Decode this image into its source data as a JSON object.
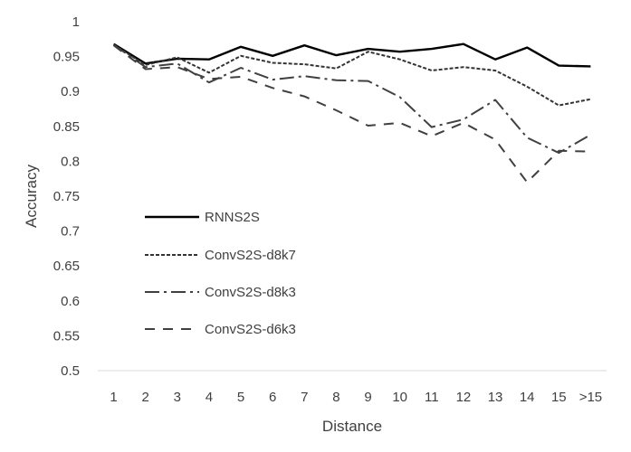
{
  "chart_data": {
    "type": "line",
    "xlabel": "Distance",
    "ylabel": "Accuracy",
    "categories": [
      "1",
      "2",
      "3",
      "4",
      "5",
      "6",
      "7",
      "8",
      "9",
      "10",
      "11",
      "12",
      "13",
      "14",
      "15",
      ">15"
    ],
    "ylim": [
      0.5,
      1
    ],
    "yticks": [
      "0.5",
      "0.55",
      "0.6",
      "0.65",
      "0.7",
      "0.75",
      "0.8",
      "0.85",
      "0.9",
      "0.95",
      "1"
    ],
    "grid": false,
    "legend_position": "inside-left",
    "series": [
      {
        "name": "RNNS2S",
        "style": "solid",
        "color": "#000000",
        "values": [
          0.968,
          0.94,
          0.947,
          0.946,
          0.964,
          0.951,
          0.966,
          0.952,
          0.961,
          0.957,
          0.961,
          0.968,
          0.946,
          0.963,
          0.937,
          0.936
        ]
      },
      {
        "name": "ConvS2S-d8k7",
        "style": "dotted",
        "color": "#333333",
        "values": [
          0.967,
          0.938,
          0.949,
          0.927,
          0.951,
          0.941,
          0.939,
          0.933,
          0.957,
          0.946,
          0.93,
          0.935,
          0.93,
          0.907,
          0.88,
          0.889
        ]
      },
      {
        "name": "ConvS2S-d8k3",
        "style": "dash-dot",
        "color": "#404040",
        "values": [
          0.967,
          0.935,
          0.94,
          0.913,
          0.934,
          0.917,
          0.922,
          0.916,
          0.915,
          0.892,
          0.849,
          0.86,
          0.888,
          0.834,
          0.812,
          0.838
        ]
      },
      {
        "name": "ConvS2S-d6k3",
        "style": "dashed",
        "color": "#404040",
        "values": [
          0.966,
          0.932,
          0.935,
          0.918,
          0.921,
          0.905,
          0.893,
          0.873,
          0.851,
          0.855,
          0.836,
          0.855,
          0.831,
          0.77,
          0.815,
          0.814
        ]
      }
    ]
  }
}
